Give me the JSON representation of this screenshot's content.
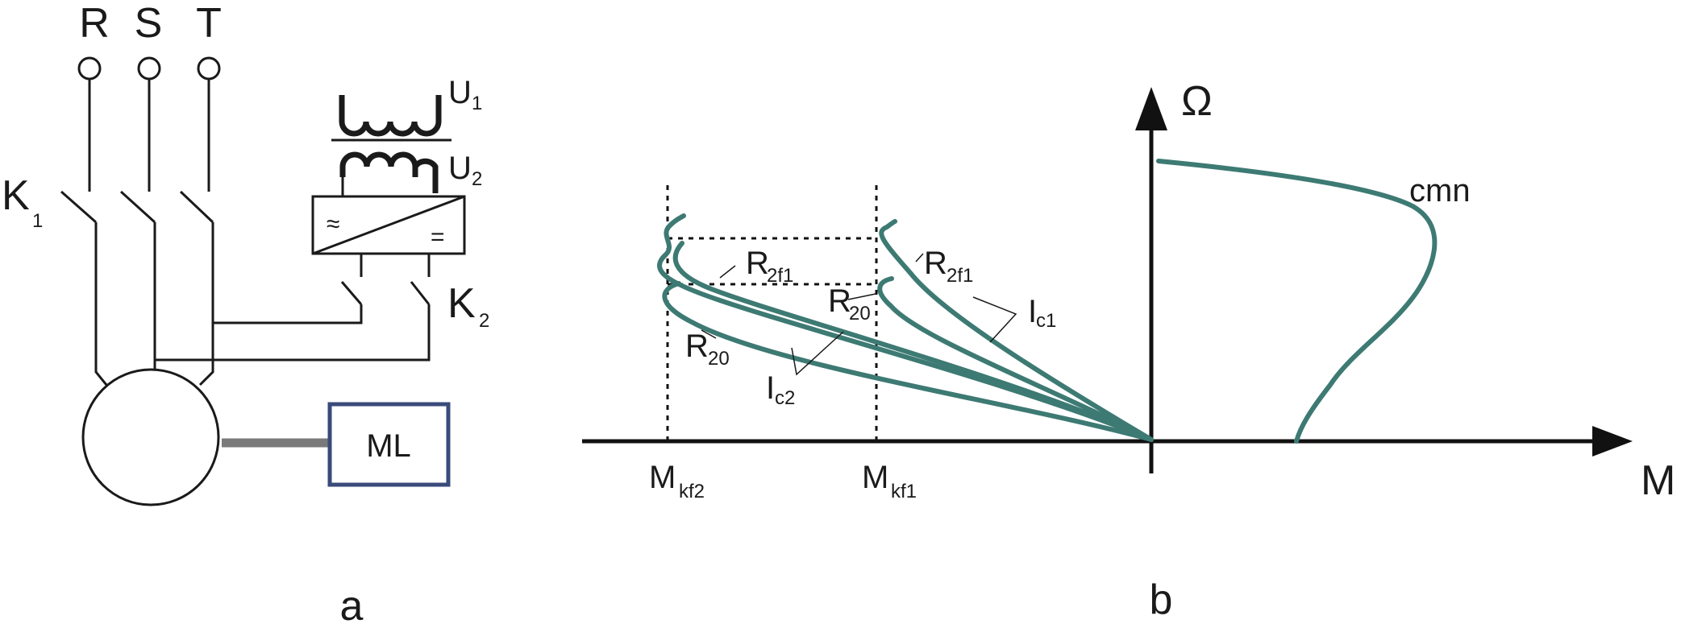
{
  "circuit": {
    "phases": [
      "R",
      "S",
      "T"
    ],
    "contactor_main": {
      "label": "K",
      "sub": "1"
    },
    "contactor_dc": {
      "label": "K",
      "sub": "2"
    },
    "transformer_primary": {
      "label": "U",
      "sub": "1"
    },
    "transformer_secondary": {
      "label": "U",
      "sub": "2"
    },
    "rectifier_ac_symbol": "≈",
    "rectifier_dc_symbol": "=",
    "load_label": "ML",
    "panel_label": "a"
  },
  "characteristics": {
    "y_axis_label": "Ω",
    "x_axis_label": "M",
    "motor_curve_label": "cmn",
    "critical_torques": [
      {
        "label": "M",
        "sub": "kf2"
      },
      {
        "label": "M",
        "sub": "kf1"
      }
    ],
    "resistance_labels": [
      {
        "label": "R",
        "sub": "2f1"
      },
      {
        "label": "R",
        "sub": "20"
      },
      {
        "label": "R",
        "sub": "2f1"
      },
      {
        "label": "R",
        "sub": "20"
      }
    ],
    "current_labels": [
      {
        "label": "I",
        "sub": "c1"
      },
      {
        "label": "I",
        "sub": "c2"
      }
    ],
    "panel_label": "b",
    "colors": {
      "curve": "#3d7a73",
      "lines": "#111111",
      "load_box": "#3a4a7a"
    }
  }
}
